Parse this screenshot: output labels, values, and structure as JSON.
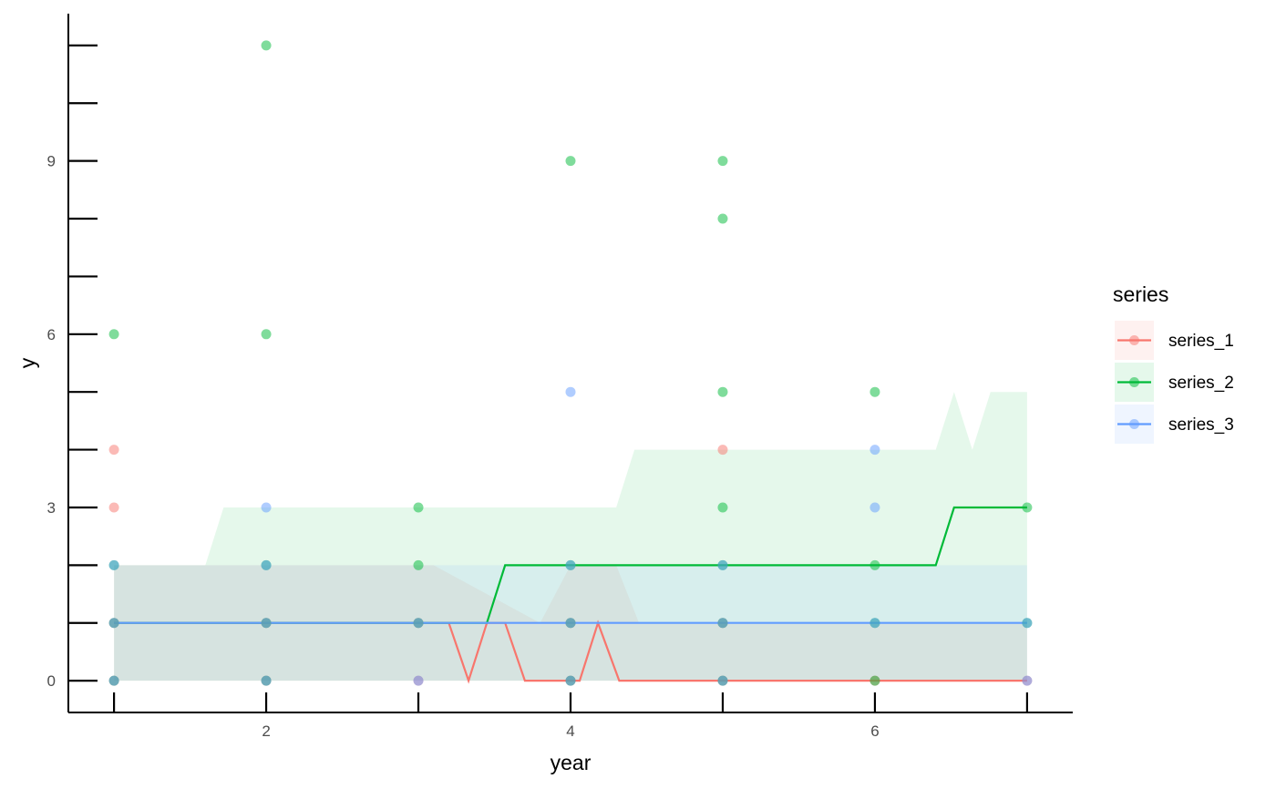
{
  "chart_data": {
    "type": "scatter",
    "xlabel": "year",
    "ylabel": "y",
    "xlim": [
      0.7,
      7.3
    ],
    "ylim": [
      -0.55,
      11.55
    ],
    "x_ticks": [
      1,
      2,
      3,
      4,
      5,
      6,
      7
    ],
    "x_tick_labels": [
      {
        "value": 2,
        "label": "2"
      },
      {
        "value": 4,
        "label": "4"
      },
      {
        "value": 6,
        "label": "6"
      }
    ],
    "y_ticks": [
      0,
      1,
      2,
      3,
      4,
      5,
      6,
      7,
      8,
      9,
      10,
      11
    ],
    "y_tick_labels": [
      {
        "value": 0,
        "label": "0"
      },
      {
        "value": 3,
        "label": "3"
      },
      {
        "value": 6,
        "label": "6"
      },
      {
        "value": 9,
        "label": "9"
      }
    ],
    "grid": false,
    "legend": {
      "title": "series",
      "position": "right"
    },
    "series": [
      {
        "name": "series_1",
        "color": "#F8766D",
        "points": [
          [
            1,
            0
          ],
          [
            1,
            1
          ],
          [
            1,
            3
          ],
          [
            1,
            4
          ],
          [
            2,
            0
          ],
          [
            2,
            1
          ],
          [
            3,
            0
          ],
          [
            3,
            1
          ],
          [
            4,
            0
          ],
          [
            4,
            1
          ],
          [
            5,
            0
          ],
          [
            5,
            1
          ],
          [
            5,
            4
          ],
          [
            6,
            0
          ],
          [
            7,
            0
          ]
        ],
        "line": [
          [
            1,
            1
          ],
          [
            3.2,
            1
          ],
          [
            3.33,
            0
          ],
          [
            3.45,
            1
          ],
          [
            3.57,
            1
          ],
          [
            3.7,
            0
          ],
          [
            4.06,
            0
          ],
          [
            4.18,
            1
          ],
          [
            4.32,
            0
          ],
          [
            7,
            0
          ]
        ],
        "band": [
          [
            1,
            0,
            2
          ],
          [
            3.1,
            0,
            2
          ],
          [
            3.8,
            0,
            1
          ],
          [
            4.0,
            0,
            2
          ],
          [
            4.3,
            0,
            2
          ],
          [
            4.45,
            0,
            1
          ],
          [
            7,
            0,
            1
          ]
        ]
      },
      {
        "name": "series_2",
        "color": "#00BA38",
        "points": [
          [
            1,
            0
          ],
          [
            1,
            1
          ],
          [
            1,
            2
          ],
          [
            1,
            6
          ],
          [
            2,
            0
          ],
          [
            2,
            1
          ],
          [
            2,
            2
          ],
          [
            2,
            6
          ],
          [
            2,
            11
          ],
          [
            3,
            1
          ],
          [
            3,
            2
          ],
          [
            3,
            3
          ],
          [
            4,
            0
          ],
          [
            4,
            1
          ],
          [
            4,
            2
          ],
          [
            4,
            9
          ],
          [
            5,
            0
          ],
          [
            5,
            1
          ],
          [
            5,
            2
          ],
          [
            5,
            3
          ],
          [
            5,
            5
          ],
          [
            5,
            8
          ],
          [
            5,
            9
          ],
          [
            6,
            0
          ],
          [
            6,
            1
          ],
          [
            6,
            2
          ],
          [
            6,
            5
          ],
          [
            7,
            1
          ],
          [
            7,
            3
          ]
        ],
        "line": [
          [
            1,
            1
          ],
          [
            3.45,
            1
          ],
          [
            3.57,
            2
          ],
          [
            6.4,
            2
          ],
          [
            6.52,
            3
          ],
          [
            7,
            3
          ]
        ],
        "band": [
          [
            1,
            0,
            2
          ],
          [
            1.6,
            0,
            2
          ],
          [
            1.72,
            0,
            3
          ],
          [
            4.3,
            0,
            3
          ],
          [
            4.42,
            0,
            4
          ],
          [
            6.4,
            0,
            4
          ],
          [
            6.52,
            0,
            5
          ],
          [
            6.64,
            0,
            4
          ],
          [
            6.76,
            0,
            5
          ],
          [
            7,
            0,
            5
          ]
        ]
      },
      {
        "name": "series_3",
        "color": "#619CFF",
        "points": [
          [
            1,
            0
          ],
          [
            1,
            1
          ],
          [
            1,
            2
          ],
          [
            2,
            0
          ],
          [
            2,
            1
          ],
          [
            2,
            2
          ],
          [
            2,
            3
          ],
          [
            3,
            0
          ],
          [
            3,
            1
          ],
          [
            4,
            0
          ],
          [
            4,
            1
          ],
          [
            4,
            2
          ],
          [
            4,
            5
          ],
          [
            5,
            0
          ],
          [
            5,
            1
          ],
          [
            5,
            2
          ],
          [
            6,
            1
          ],
          [
            6,
            3
          ],
          [
            6,
            4
          ],
          [
            7,
            0
          ],
          [
            7,
            1
          ]
        ],
        "line": [
          [
            1,
            1
          ],
          [
            7,
            1
          ]
        ],
        "band": [
          [
            1,
            0,
            2
          ],
          [
            7,
            0,
            2
          ]
        ]
      }
    ]
  }
}
